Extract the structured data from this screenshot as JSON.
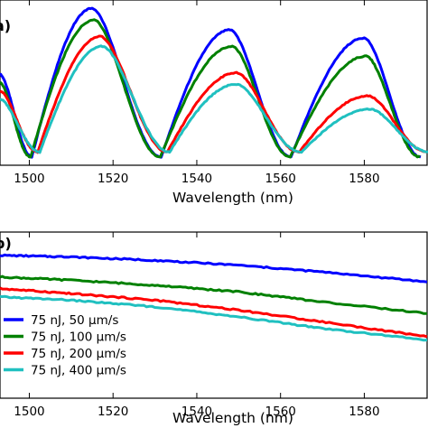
{
  "chart_data": [
    {
      "panel": "a",
      "type": "line",
      "panel_label": "a)",
      "xlabel": "Wavelength (nm)",
      "ylabel": "",
      "xlim": [
        1493,
        1595
      ],
      "ylim": [
        0,
        1
      ],
      "xticks": [
        1500,
        1520,
        1540,
        1560,
        1580
      ],
      "grid": false,
      "legend": "none",
      "series": [
        {
          "color": "#0000ff",
          "minima": [
            1500.6,
            1531.5,
            1562.5,
            1593.5
          ],
          "maxima": [
            1515.0,
            1548.0,
            1580.0
          ],
          "peak_levels": [
            0.95,
            0.82,
            0.77
          ],
          "floor": 0.05
        },
        {
          "color": "#008000",
          "minima": [
            1500.3,
            1531.3,
            1562.3,
            1593.3
          ],
          "maxima": [
            1515.5,
            1548.5,
            1580.5
          ],
          "peak_levels": [
            0.88,
            0.72,
            0.66
          ],
          "floor": 0.05
        },
        {
          "color": "#ff0000",
          "minima": [
            1502.0,
            1533.0,
            1564.5,
            1595.0
          ],
          "maxima": [
            1517.0,
            1549.5,
            1581.0
          ],
          "peak_levels": [
            0.78,
            0.56,
            0.42
          ],
          "floor": 0.08
        },
        {
          "color": "#20c0c0",
          "minima": [
            1502.5,
            1533.5,
            1565.0,
            1595.5
          ],
          "maxima": [
            1517.5,
            1549.5,
            1581.5
          ],
          "peak_levels": [
            0.72,
            0.49,
            0.34
          ],
          "floor": 0.08
        }
      ]
    },
    {
      "panel": "b",
      "type": "line",
      "panel_label": "b)",
      "xlabel": "Wavelength (nm)",
      "ylabel": "",
      "xlim": [
        1493,
        1595
      ],
      "ylim": [
        0,
        1
      ],
      "xticks": [
        1500,
        1520,
        1540,
        1560,
        1580
      ],
      "grid": false,
      "legend": "lower-left",
      "series": [
        {
          "name": "75 nJ, 50 μm/s",
          "color": "#0000ff",
          "x": [
            1493,
            1510,
            1530,
            1550,
            1570,
            1595
          ],
          "y": [
            0.86,
            0.85,
            0.83,
            0.8,
            0.76,
            0.7
          ]
        },
        {
          "name": "75 nJ, 100 μm/s",
          "color": "#008000",
          "x": [
            1493,
            1510,
            1530,
            1550,
            1570,
            1595
          ],
          "y": [
            0.73,
            0.71,
            0.68,
            0.64,
            0.58,
            0.51
          ]
        },
        {
          "name": "75 nJ, 200 μm/s",
          "color": "#ff0000",
          "x": [
            1493,
            1510,
            1530,
            1550,
            1570,
            1595
          ],
          "y": [
            0.66,
            0.63,
            0.59,
            0.53,
            0.46,
            0.37
          ]
        },
        {
          "name": "75 nJ, 400 μm/s",
          "color": "#20c0c0",
          "x": [
            1493,
            1510,
            1530,
            1550,
            1570,
            1595
          ],
          "y": [
            0.61,
            0.59,
            0.55,
            0.49,
            0.42,
            0.35
          ]
        }
      ]
    }
  ]
}
